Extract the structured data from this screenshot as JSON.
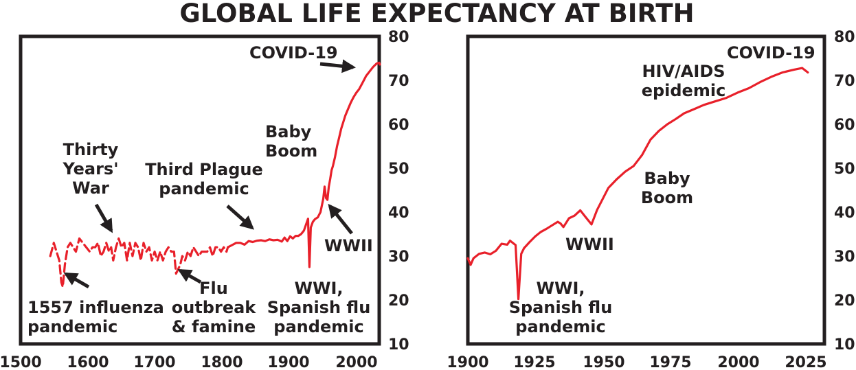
{
  "chart_data": [
    {
      "type": "line",
      "title": "GLOBAL LIFE EXPECTANCY AT BIRTH",
      "xlabel": "",
      "ylabel": "",
      "xlim": [
        1500,
        2020
      ],
      "ylim": [
        10,
        80
      ],
      "x_ticks": [
        "1500",
        "1600",
        "1700",
        "1800",
        "1900",
        "2000"
      ],
      "y_ticks": [
        "10",
        "20",
        "30",
        "40",
        "50",
        "60",
        "70",
        "80"
      ],
      "y_axis_side": "right",
      "grid": false,
      "series": [
        {
          "style": "dashed",
          "points": [
            [
              1543,
              30
            ],
            [
              1548,
              33
            ],
            [
              1552,
              31
            ],
            [
              1556,
              29
            ],
            [
              1559,
              24
            ],
            [
              1561,
              23
            ],
            [
              1564,
              28
            ],
            [
              1568,
              32
            ],
            [
              1572,
              33
            ],
            [
              1576,
              32
            ],
            [
              1580,
              31
            ],
            [
              1585,
              34
            ],
            [
              1590,
              33
            ],
            [
              1595,
              32
            ],
            [
              1600,
              31
            ],
            [
              1604,
              32
            ],
            [
              1608,
              32
            ],
            [
              1612,
              33
            ],
            [
              1616,
              30
            ],
            [
              1620,
              31
            ],
            [
              1624,
              33
            ],
            [
              1628,
              31
            ],
            [
              1631,
              32
            ],
            [
              1634,
              29
            ],
            [
              1638,
              32
            ],
            [
              1642,
              34
            ],
            [
              1646,
              32
            ],
            [
              1650,
              33
            ],
            [
              1654,
              29
            ],
            [
              1658,
              33
            ],
            [
              1662,
              30
            ],
            [
              1666,
              33
            ],
            [
              1670,
              32
            ],
            [
              1674,
              29
            ],
            [
              1678,
              33
            ],
            [
              1682,
              31
            ],
            [
              1686,
              32
            ],
            [
              1690,
              29
            ],
            [
              1694,
              31
            ],
            [
              1698,
              29
            ],
            [
              1702,
              31
            ],
            [
              1706,
              29
            ],
            [
              1710,
              31
            ],
            [
              1714,
              32
            ],
            [
              1718,
              31
            ],
            [
              1722,
              31
            ],
            [
              1725,
              26
            ],
            [
              1728,
              27
            ],
            [
              1731,
              28
            ],
            [
              1734,
              30
            ],
            [
              1738,
              29
            ],
            [
              1742,
              31
            ],
            [
              1746,
              30
            ],
            [
              1750,
              32
            ],
            [
              1754,
              31
            ],
            [
              1758,
              30
            ],
            [
              1762,
              31
            ],
            [
              1766,
              31
            ],
            [
              1770,
              31
            ],
            [
              1774,
              32
            ],
            [
              1778,
              30
            ],
            [
              1782,
              32
            ],
            [
              1786,
              32
            ],
            [
              1790,
              31
            ],
            [
              1794,
              32
            ],
            [
              1798,
              31
            ],
            [
              1800,
              32
            ]
          ]
        },
        {
          "style": "solid",
          "points": [
            [
              1800,
              32
            ],
            [
              1806,
              32.5
            ],
            [
              1812,
              33
            ],
            [
              1818,
              33
            ],
            [
              1824,
              32.6
            ],
            [
              1830,
              33.4
            ],
            [
              1836,
              33.2
            ],
            [
              1842,
              33.5
            ],
            [
              1848,
              33.6
            ],
            [
              1854,
              33.4
            ],
            [
              1860,
              33.8
            ],
            [
              1866,
              33.6
            ],
            [
              1872,
              33.7
            ],
            [
              1878,
              33.3
            ],
            [
              1882,
              34.2
            ],
            [
              1886,
              33.4
            ],
            [
              1890,
              34.5
            ],
            [
              1894,
              34
            ],
            [
              1898,
              34.6
            ],
            [
              1902,
              34.6
            ],
            [
              1906,
              35
            ],
            [
              1910,
              35.8
            ],
            [
              1914,
              37.6
            ],
            [
              1916,
              38.5
            ],
            [
              1918,
              27.5
            ],
            [
              1920,
              36.5
            ],
            [
              1923,
              37.8
            ],
            [
              1926,
              38.4
            ],
            [
              1930,
              38.8
            ],
            [
              1934,
              40
            ],
            [
              1938,
              43
            ],
            [
              1940,
              45.8
            ],
            [
              1942,
              43.2
            ],
            [
              1944,
              42.8
            ],
            [
              1946,
              45.8
            ],
            [
              1948,
              47.5
            ],
            [
              1950,
              49.5
            ],
            [
              1952,
              50.5
            ],
            [
              1955,
              52.5
            ],
            [
              1958,
              55
            ],
            [
              1961,
              57
            ],
            [
              1964,
              59
            ],
            [
              1967,
              60.5
            ],
            [
              1970,
              62
            ],
            [
              1974,
              63.5
            ],
            [
              1978,
              65
            ],
            [
              1982,
              66.2
            ],
            [
              1986,
              67.2
            ],
            [
              1990,
              68
            ],
            [
              1995,
              69.5
            ],
            [
              2000,
              71
            ],
            [
              2005,
              72
            ],
            [
              2010,
              73
            ],
            [
              2015,
              73.8
            ],
            [
              2019,
              74
            ],
            [
              2020,
              73.6
            ]
          ]
        }
      ],
      "annotations": [
        {
          "lines": [
            "COVID-19"
          ]
        },
        {
          "lines": [
            "Baby",
            "Boom"
          ]
        },
        {
          "lines": [
            "Thirty",
            "Years'",
            "War"
          ]
        },
        {
          "lines": [
            "Third Plague",
            "pandemic"
          ]
        },
        {
          "lines": [
            "WWII"
          ]
        },
        {
          "lines": [
            "WWI,",
            "Spanish flu",
            "pandemic"
          ]
        },
        {
          "lines": [
            "1557 influenza",
            "pandemic"
          ]
        },
        {
          "lines": [
            "Flu",
            "outbreak",
            "& famine"
          ]
        }
      ]
    },
    {
      "type": "line",
      "title": "",
      "xlabel": "",
      "ylabel": "",
      "xlim": [
        1900,
        2022
      ],
      "ylim": [
        10,
        80
      ],
      "x_ticks": [
        "1900",
        "1925",
        "1950",
        "1975",
        "2000",
        "2025"
      ],
      "y_ticks": [
        "10",
        "20",
        "30",
        "40",
        "50",
        "60",
        "70",
        "80"
      ],
      "y_axis_side": "right",
      "grid": false,
      "series": [
        {
          "style": "solid",
          "points": [
            [
              1900,
              29.5
            ],
            [
              1901,
              28
            ],
            [
              1902,
              29.5
            ],
            [
              1904,
              30.5
            ],
            [
              1906,
              30.8
            ],
            [
              1908,
              30.4
            ],
            [
              1910,
              31.2
            ],
            [
              1912,
              32.8
            ],
            [
              1914,
              32.6
            ],
            [
              1915,
              33.5
            ],
            [
              1917,
              32.5
            ],
            [
              1918,
              20.2
            ],
            [
              1919,
              30.5
            ],
            [
              1920,
              31.8
            ],
            [
              1922,
              33.2
            ],
            [
              1924,
              34.5
            ],
            [
              1926,
              35.5
            ],
            [
              1928,
              36.2
            ],
            [
              1930,
              37
            ],
            [
              1932,
              37.8
            ],
            [
              1933,
              37.4
            ],
            [
              1934,
              36.6
            ],
            [
              1936,
              38.6
            ],
            [
              1938,
              39.2
            ],
            [
              1940,
              40.4
            ],
            [
              1942,
              38.8
            ],
            [
              1944,
              37.2
            ],
            [
              1946,
              40.5
            ],
            [
              1948,
              43
            ],
            [
              1950,
              45.5
            ],
            [
              1953,
              47.5
            ],
            [
              1956,
              49.2
            ],
            [
              1959,
              50.5
            ],
            [
              1962,
              53
            ],
            [
              1965,
              56.5
            ],
            [
              1968,
              58.5
            ],
            [
              1971,
              60
            ],
            [
              1974,
              61.2
            ],
            [
              1977,
              62.5
            ],
            [
              1980,
              63.3
            ],
            [
              1984,
              64.4
            ],
            [
              1988,
              65.2
            ],
            [
              1992,
              66
            ],
            [
              1996,
              67.2
            ],
            [
              2000,
              68.2
            ],
            [
              2004,
              69.6
            ],
            [
              2008,
              70.8
            ],
            [
              2012,
              71.8
            ],
            [
              2016,
              72.4
            ],
            [
              2019,
              72.8
            ],
            [
              2021,
              71.8
            ]
          ]
        }
      ],
      "annotations": [
        {
          "lines": [
            "COVID-19"
          ]
        },
        {
          "lines": [
            "HIV/AIDS",
            "epidemic"
          ]
        },
        {
          "lines": [
            "Baby",
            "Boom"
          ]
        },
        {
          "lines": [
            "WWII"
          ]
        },
        {
          "lines": [
            "WWI,",
            "Spanish flu",
            "pandemic"
          ]
        }
      ]
    }
  ]
}
